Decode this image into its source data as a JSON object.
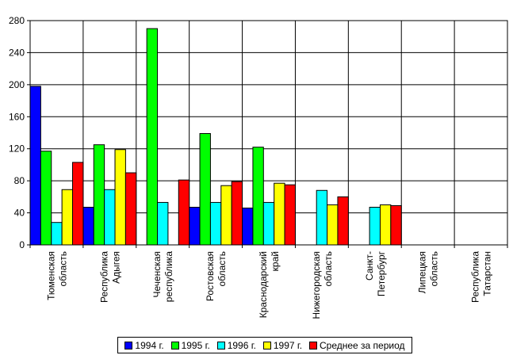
{
  "chart_data": {
    "type": "bar",
    "categories": [
      [
        "Тюменская",
        "область"
      ],
      [
        "Республика",
        "Адыгея"
      ],
      [
        "Чеченская",
        "республика"
      ],
      [
        "Ростовская",
        "область"
      ],
      [
        "Краснодарский",
        "край"
      ],
      [
        "Нижегородская",
        "область"
      ],
      [
        "Санкт-",
        "Петербург"
      ],
      [
        "Липецкая",
        "область"
      ],
      [
        "Республика",
        "Татарстан"
      ]
    ],
    "series": [
      {
        "name": "1994 г.",
        "color": "#0000ff",
        "values": [
          198,
          47,
          null,
          47,
          46,
          null,
          null,
          null,
          null
        ]
      },
      {
        "name": "1995 г.",
        "color": "#00ff00",
        "values": [
          117,
          125,
          270,
          139,
          122,
          null,
          null,
          null,
          null
        ]
      },
      {
        "name": "1996 г.",
        "color": "#00ffff",
        "values": [
          28,
          69,
          53,
          53,
          53,
          68,
          47,
          null,
          null
        ]
      },
      {
        "name": "1997 г.",
        "color": "#ffff00",
        "values": [
          69,
          119,
          null,
          74,
          77,
          50,
          50,
          null,
          null
        ]
      },
      {
        "name": "Среднее за период",
        "color": "#ff0000",
        "values": [
          103,
          90,
          81,
          79,
          75,
          60,
          49,
          null,
          null
        ]
      }
    ],
    "yticks": [
      0,
      40,
      80,
      120,
      160,
      200,
      240,
      280
    ],
    "ylim": [
      0,
      280
    ],
    "grid": true,
    "legend_position": "bottom"
  }
}
